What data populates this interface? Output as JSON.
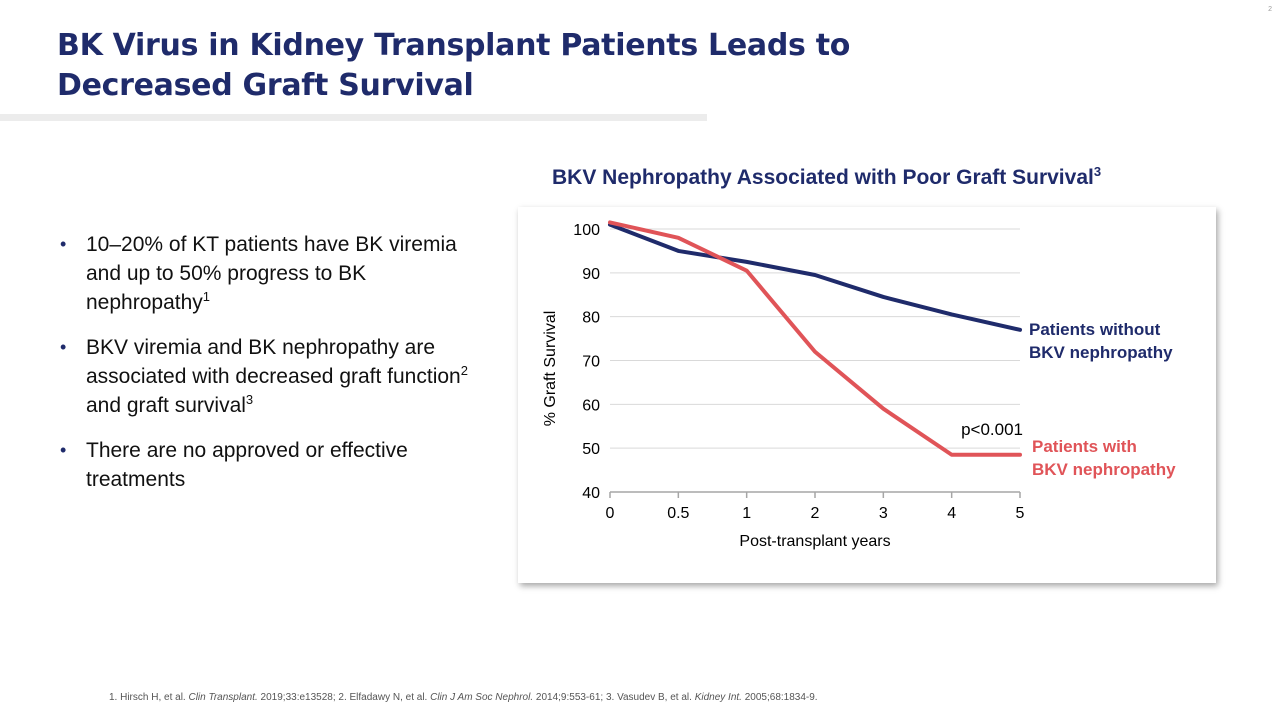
{
  "title": {
    "line1": "BK Virus in Kidney Transplant Patients Leads to",
    "line2": "Decreased Graft Survival"
  },
  "corner_mark": "2",
  "bullets": [
    {
      "text": "10–20% of KT patients have BK viremia and up to 50% progress to BK nephropathy",
      "sup": "1"
    },
    {
      "text_a": "BKV viremia and BK nephropathy are associated with decreased graft function",
      "sup_a": "2",
      "text_b": " and graft survival",
      "sup_b": "3"
    },
    {
      "text": "There are no approved or effective treatments"
    }
  ],
  "bullet_symbol": "•",
  "chart_data": {
    "type": "line",
    "title": "BKV Nephropathy Associated with Poor Graft Survival",
    "title_sup": "3",
    "xlabel": "Post-transplant years",
    "ylabel": "% Graft Survival",
    "categories": [
      "0",
      "0.5",
      "1",
      "2",
      "3",
      "4",
      "5"
    ],
    "ylim": [
      40,
      100
    ],
    "yticks": [
      40,
      50,
      60,
      70,
      80,
      90,
      100
    ],
    "grid": true,
    "series": [
      {
        "name": "Patients without BKV nephropathy",
        "label_line1": "Patients without",
        "label_line2": "BKV nephropathy",
        "color": "#1f2b6b",
        "values": [
          101,
          95,
          92.5,
          89.5,
          84.5,
          80.5,
          77
        ]
      },
      {
        "name": "Patients with BKV nephropathy",
        "label_line1": "Patients with",
        "label_line2": "BKV nephropathy",
        "color": "#e05458",
        "values": [
          101.5,
          98,
          90.5,
          72,
          59,
          48.5,
          48.5
        ]
      }
    ],
    "annotation": "p<0.001"
  },
  "footnote": {
    "p1": "1. Hirsch H, et al. ",
    "j1": "Clin Transplant.",
    "p2": " 2019;33:e13528; 2. Elfadawy N, et al. ",
    "j2": "Clin J Am Soc Nephrol.",
    "p3": " 2014;9:553-61; 3. Vasudev B, et al. ",
    "j3": "Kidney Int.",
    "p4": " 2005;68:1834-9."
  }
}
